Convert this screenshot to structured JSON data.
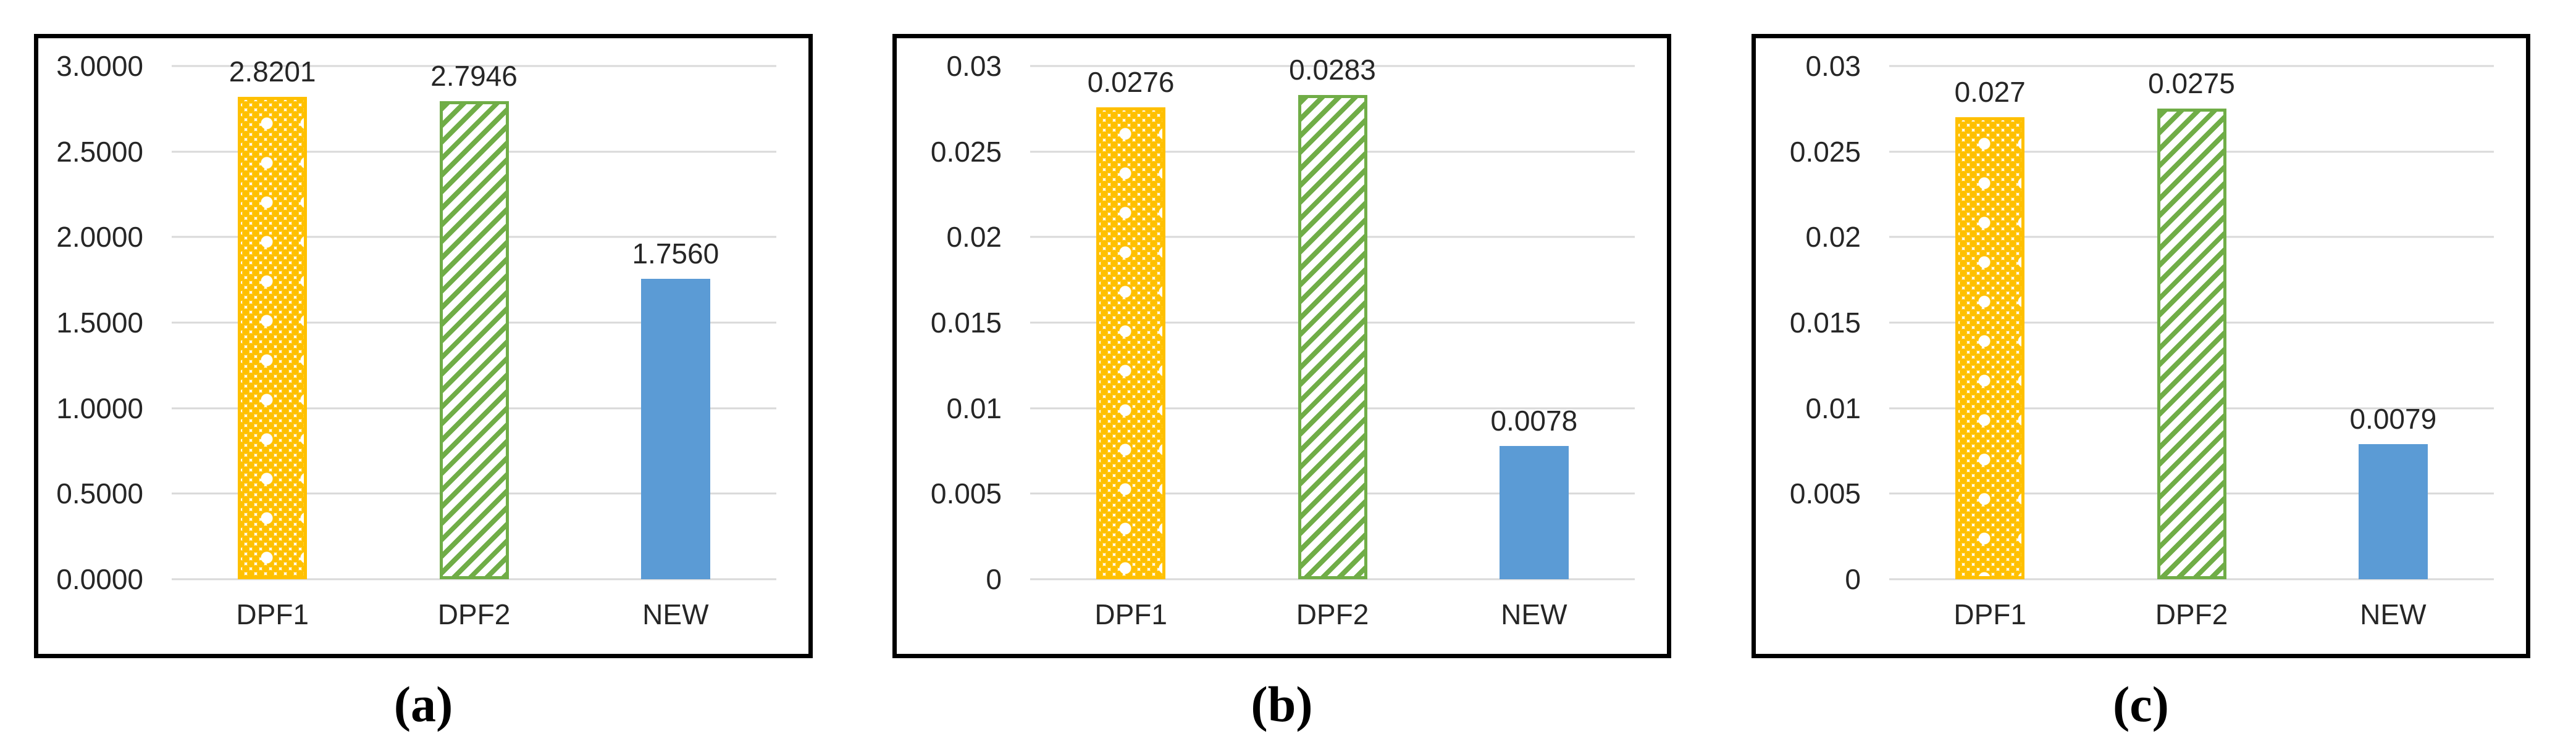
{
  "figure": {
    "description": "Three side-by-side bar charts comparing DPF1, DPF2 and NEW methods",
    "panels": [
      "(a)",
      "(b)",
      "(c)"
    ]
  },
  "colors": {
    "dpf1_fill": "#FFC000",
    "dpf2_fill": "#70AD47",
    "new_fill": "#5B9BD5",
    "gridline": "#D9D9D9",
    "frame_border": "#000000",
    "text": "#262626"
  },
  "bar_styles": [
    {
      "category": "DPF1",
      "color": "#FFC000",
      "pattern": "dotted-grid"
    },
    {
      "category": "DPF2",
      "color": "#70AD47",
      "pattern": "diagonal-hatch"
    },
    {
      "category": "NEW",
      "color": "#5B9BD5",
      "pattern": "solid"
    }
  ],
  "chart_data": [
    {
      "panel_label": "(a)",
      "type": "bar",
      "categories": [
        "DPF1",
        "DPF2",
        "NEW"
      ],
      "values": [
        2.8201,
        2.7946,
        1.756
      ],
      "data_labels": [
        "2.8201",
        "2.7946",
        "1.7560"
      ],
      "yticks_bottom_to_top": [
        "0.0000",
        "0.5000",
        "1.0000",
        "1.5000",
        "2.0000",
        "2.5000",
        "3.0000"
      ],
      "ylim": [
        0,
        3.0
      ],
      "title": "",
      "xlabel": "",
      "ylabel": "",
      "grid": "horizontal",
      "legend": "none"
    },
    {
      "panel_label": "(b)",
      "type": "bar",
      "categories": [
        "DPF1",
        "DPF2",
        "NEW"
      ],
      "values": [
        0.0276,
        0.0283,
        0.0078
      ],
      "data_labels": [
        "0.0276",
        "0.0283",
        "0.0078"
      ],
      "yticks_bottom_to_top": [
        "0",
        "0.005",
        "0.01",
        "0.015",
        "0.02",
        "0.025",
        "0.03"
      ],
      "ylim": [
        0,
        0.03
      ],
      "title": "",
      "xlabel": "",
      "ylabel": "",
      "grid": "horizontal",
      "legend": "none"
    },
    {
      "panel_label": "(c)",
      "type": "bar",
      "categories": [
        "DPF1",
        "DPF2",
        "NEW"
      ],
      "values": [
        0.027,
        0.0275,
        0.0079
      ],
      "data_labels": [
        "0.027",
        "0.0275",
        "0.0079"
      ],
      "yticks_bottom_to_top": [
        "0",
        "0.005",
        "0.01",
        "0.015",
        "0.02",
        "0.025",
        "0.03"
      ],
      "ylim": [
        0,
        0.03
      ],
      "title": "",
      "xlabel": "",
      "ylabel": "",
      "grid": "horizontal",
      "legend": "none"
    }
  ]
}
